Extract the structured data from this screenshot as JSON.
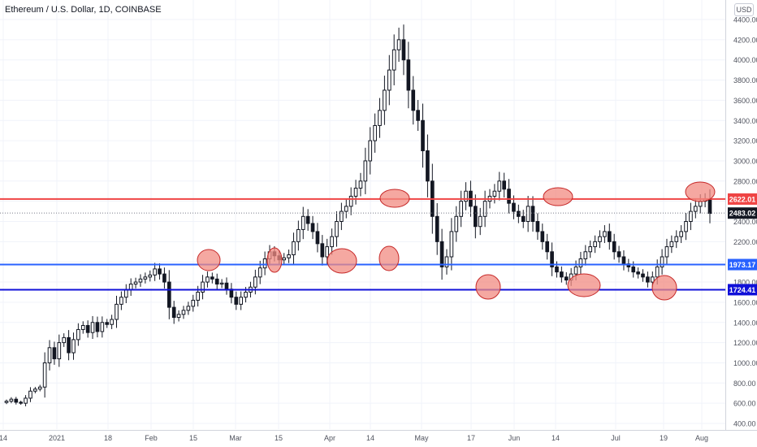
{
  "header": {
    "title": "Ethereum / U.S. Dollar, 1D, COINBASE"
  },
  "currency_button": {
    "label": "USD"
  },
  "colors": {
    "resistance": "#ef4444",
    "support_upper": "#2962ff",
    "support_lower": "#1010d8",
    "last_price": "#131722",
    "candle": "#131722",
    "highlight_fill": "#f28b82",
    "highlight_stroke": "#c62828",
    "grid": "#f0f3fa"
  },
  "chart_data": {
    "type": "candlestick",
    "instrument": "Ethereum / U.S. Dollar",
    "interval": "1D",
    "exchange": "COINBASE",
    "x_ticks": [
      "14",
      "2021",
      "18",
      "Feb",
      "15",
      "Mar",
      "15",
      "Apr",
      "14",
      "May",
      "17",
      "Jun",
      "14",
      "Jul",
      "19",
      "Aug"
    ],
    "y_ticks": [
      "400.00",
      "600.00",
      "800.00",
      "1000.00",
      "1200.00",
      "1400.00",
      "1600.00",
      "1800.00",
      "2000.00",
      "2200.00",
      "2400.00",
      "2600.00",
      "2800.00",
      "3000.00",
      "3200.00",
      "3400.00",
      "3600.00",
      "3800.00",
      "4000.00",
      "4200.00",
      "4400.00"
    ],
    "ylim": [
      350,
      4480
    ],
    "grid": true,
    "horizontal_lines": [
      {
        "value": 2622.01,
        "label": "2622.01",
        "role": "resistance"
      },
      {
        "value": 1973.17,
        "label": "1973.17",
        "role": "support_upper"
      },
      {
        "value": 1724.41,
        "label": "1724.41",
        "role": "support_lower"
      }
    ],
    "last_price": {
      "value": 2483.02,
      "label": "2483.02"
    },
    "closes": [
      620,
      640,
      610,
      600,
      650,
      720,
      740,
      760,
      1000,
      1150,
      1040,
      1200,
      1250,
      1100,
      1230,
      1330,
      1370,
      1300,
      1400,
      1310,
      1400,
      1380,
      1430,
      1580,
      1650,
      1720,
      1780,
      1800,
      1830,
      1850,
      1870,
      1930,
      1880,
      1800,
      1550,
      1450,
      1480,
      1520,
      1560,
      1620,
      1700,
      1800,
      1850,
      1830,
      1780,
      1790,
      1730,
      1650,
      1580,
      1650,
      1700,
      1750,
      1850,
      1940,
      2030,
      2100,
      2060,
      2020,
      2040,
      2070,
      2200,
      2320,
      2450,
      2380,
      2300,
      2180,
      2050,
      2150,
      2250,
      2400,
      2500,
      2550,
      2650,
      2730,
      2800,
      3000,
      3200,
      3350,
      3500,
      3700,
      3900,
      4100,
      4200,
      4000,
      3700,
      3500,
      3400,
      3100,
      2800,
      2450,
      2200,
      1950,
      2050,
      2300,
      2450,
      2600,
      2700,
      2550,
      2350,
      2450,
      2600,
      2650,
      2700,
      2800,
      2720,
      2580,
      2500,
      2450,
      2400,
      2550,
      2400,
      2300,
      2200,
      2100,
      1950,
      1900,
      1850,
      1820,
      1880,
      1950,
      2030,
      2100,
      2150,
      2200,
      2250,
      2300,
      2200,
      2100,
      2050,
      1980,
      1950,
      1900,
      1880,
      1850,
      1800,
      1850,
      1950,
      2050,
      2150,
      2200,
      2250,
      2300,
      2400,
      2500,
      2550,
      2600,
      2620,
      2480
    ]
  }
}
